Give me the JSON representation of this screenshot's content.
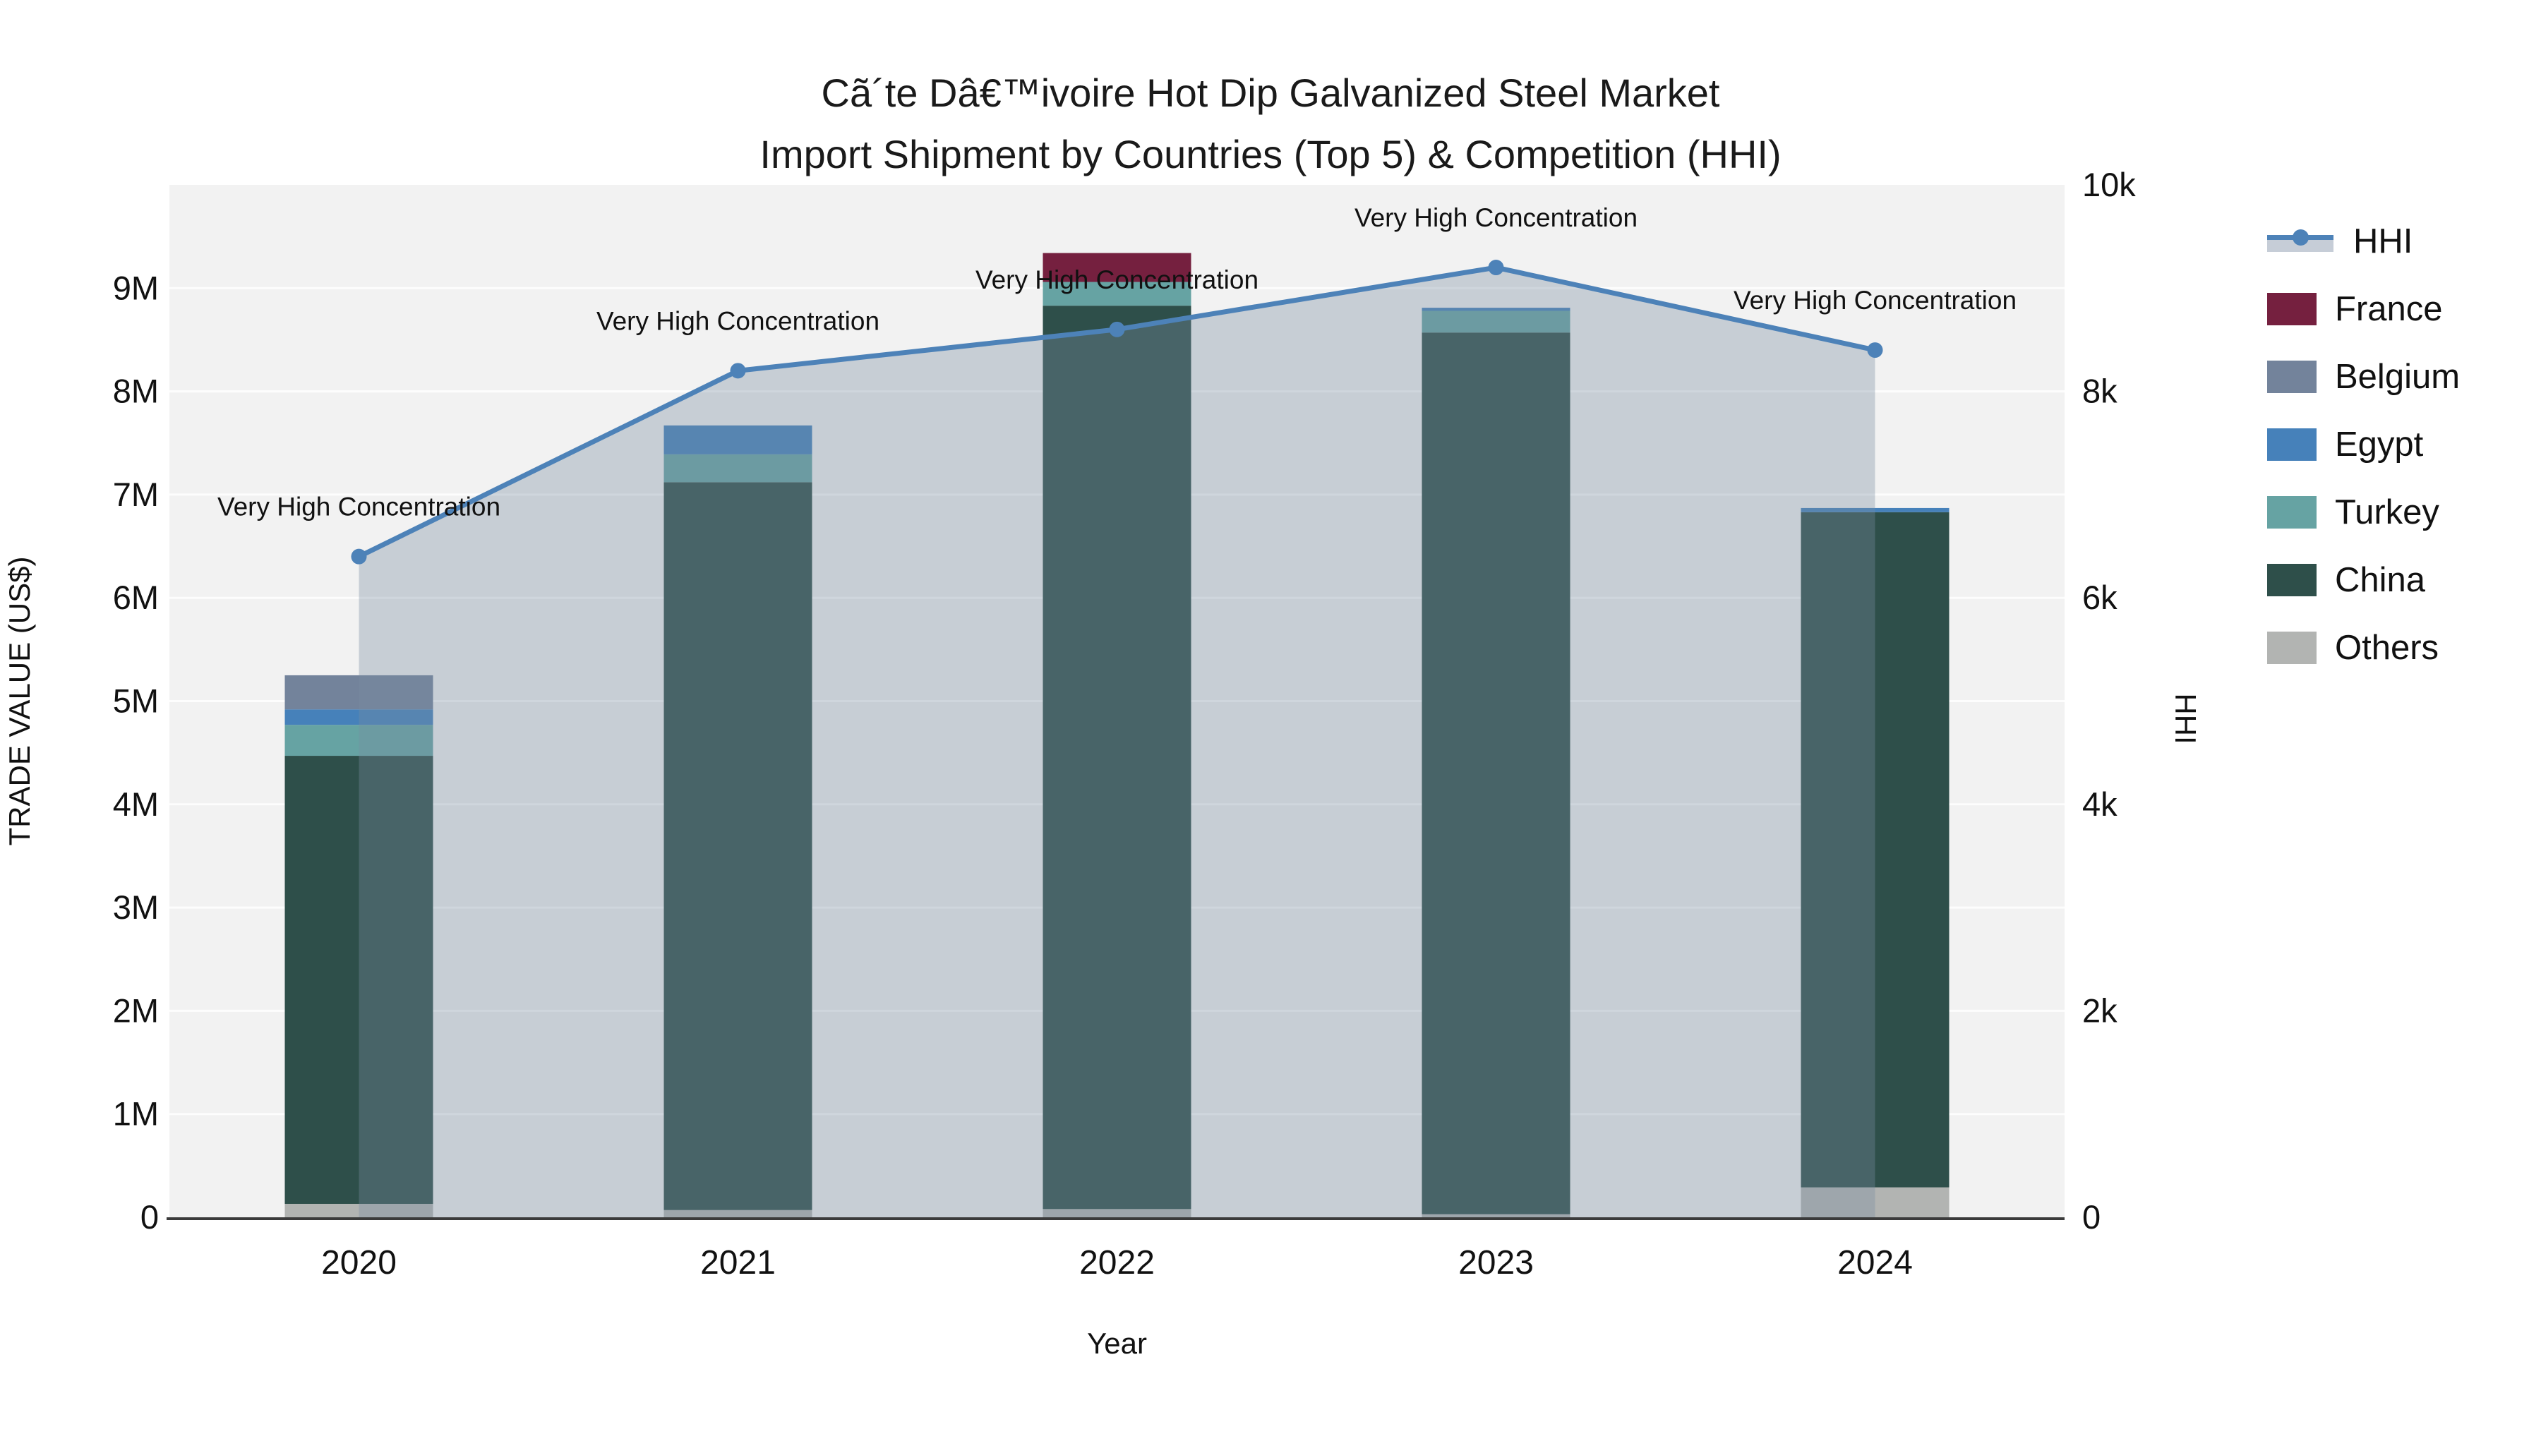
{
  "title": {
    "line1": "Cã´te Dâ€™ivoire Hot Dip Galvanized Steel Market",
    "line2": "Import Shipment by Countries (Top 5) & Competition (HHI)"
  },
  "chart_data": {
    "type": "bar+line",
    "title": "Cã´te Dâ€™ivoire Hot Dip Galvanized Steel Market Import Shipment by Countries (Top 5) & Competition (HHI)",
    "xlabel": "Year",
    "ylabel_left": "TRADE VALUE (US$)",
    "ylabel_right": "HHI",
    "categories": [
      "2020",
      "2021",
      "2022",
      "2023",
      "2024"
    ],
    "unit": "million US$",
    "ylim_left_musd": [
      0,
      10
    ],
    "ylim_right_hhi": [
      0,
      10000
    ],
    "yticks_left": [
      {
        "value_musd": 0,
        "label": "0"
      },
      {
        "value_musd": 1,
        "label": "1M"
      },
      {
        "value_musd": 2,
        "label": "2M"
      },
      {
        "value_musd": 3,
        "label": "3M"
      },
      {
        "value_musd": 4,
        "label": "4M"
      },
      {
        "value_musd": 5,
        "label": "5M"
      },
      {
        "value_musd": 6,
        "label": "6M"
      },
      {
        "value_musd": 7,
        "label": "7M"
      },
      {
        "value_musd": 8,
        "label": "8M"
      },
      {
        "value_musd": 9,
        "label": "9M"
      }
    ],
    "yticks_right": [
      {
        "value": 0,
        "label": "0"
      },
      {
        "value": 2000,
        "label": "2k"
      },
      {
        "value": 4000,
        "label": "4k"
      },
      {
        "value": 6000,
        "label": "6k"
      },
      {
        "value": 8000,
        "label": "8k"
      },
      {
        "value": 10000,
        "label": "10k"
      }
    ],
    "series": [
      {
        "name": "Others",
        "color": "#b2b4b2",
        "values_musd": [
          0.13,
          0.07,
          0.08,
          0.03,
          0.29
        ]
      },
      {
        "name": "China",
        "color": "#2e4f4a",
        "values_musd": [
          4.34,
          7.05,
          8.75,
          8.54,
          6.54
        ]
      },
      {
        "name": "Turkey",
        "color": "#66a3a3",
        "values_musd": [
          0.3,
          0.27,
          0.23,
          0.21,
          0.0
        ]
      },
      {
        "name": "Egypt",
        "color": "#4681ba",
        "values_musd": [
          0.15,
          0.28,
          0.0,
          0.03,
          0.04
        ]
      },
      {
        "name": "Belgium",
        "color": "#73839b",
        "values_musd": [
          0.33,
          0.0,
          0.0,
          0.0,
          0.0
        ]
      },
      {
        "name": "France",
        "color": "#75203f",
        "values_musd": [
          0.0,
          0.0,
          0.28,
          0.0,
          0.0
        ]
      }
    ],
    "bar_totals_musd": [
      5.25,
      7.67,
      9.34,
      8.81,
      6.87
    ],
    "hhi_line": {
      "name": "HHI",
      "color": "#4d82b8",
      "area_fill": "rgba(120,140,160,0.35)",
      "values": [
        6400,
        8200,
        8600,
        9200,
        8400
      ]
    },
    "annotations": [
      {
        "x": "2020",
        "text": "Very High Concentration"
      },
      {
        "x": "2021",
        "text": "Very High Concentration"
      },
      {
        "x": "2022",
        "text": "Very High Concentration"
      },
      {
        "x": "2023",
        "text": "Very High Concentration"
      },
      {
        "x": "2024",
        "text": "Very High Concentration"
      }
    ],
    "grid": true,
    "legend_position": "right"
  },
  "legend": {
    "items": [
      {
        "label": "HHI",
        "type": "line",
        "color": "#4d82b8"
      },
      {
        "label": "France",
        "type": "patch",
        "color": "#75203f"
      },
      {
        "label": "Belgium",
        "type": "patch",
        "color": "#73839b"
      },
      {
        "label": "Egypt",
        "type": "patch",
        "color": "#4681ba"
      },
      {
        "label": "Turkey",
        "type": "patch",
        "color": "#66a3a3"
      },
      {
        "label": "China",
        "type": "patch",
        "color": "#2e4f4a"
      },
      {
        "label": "Others",
        "type": "patch",
        "color": "#b2b4b2"
      }
    ]
  }
}
